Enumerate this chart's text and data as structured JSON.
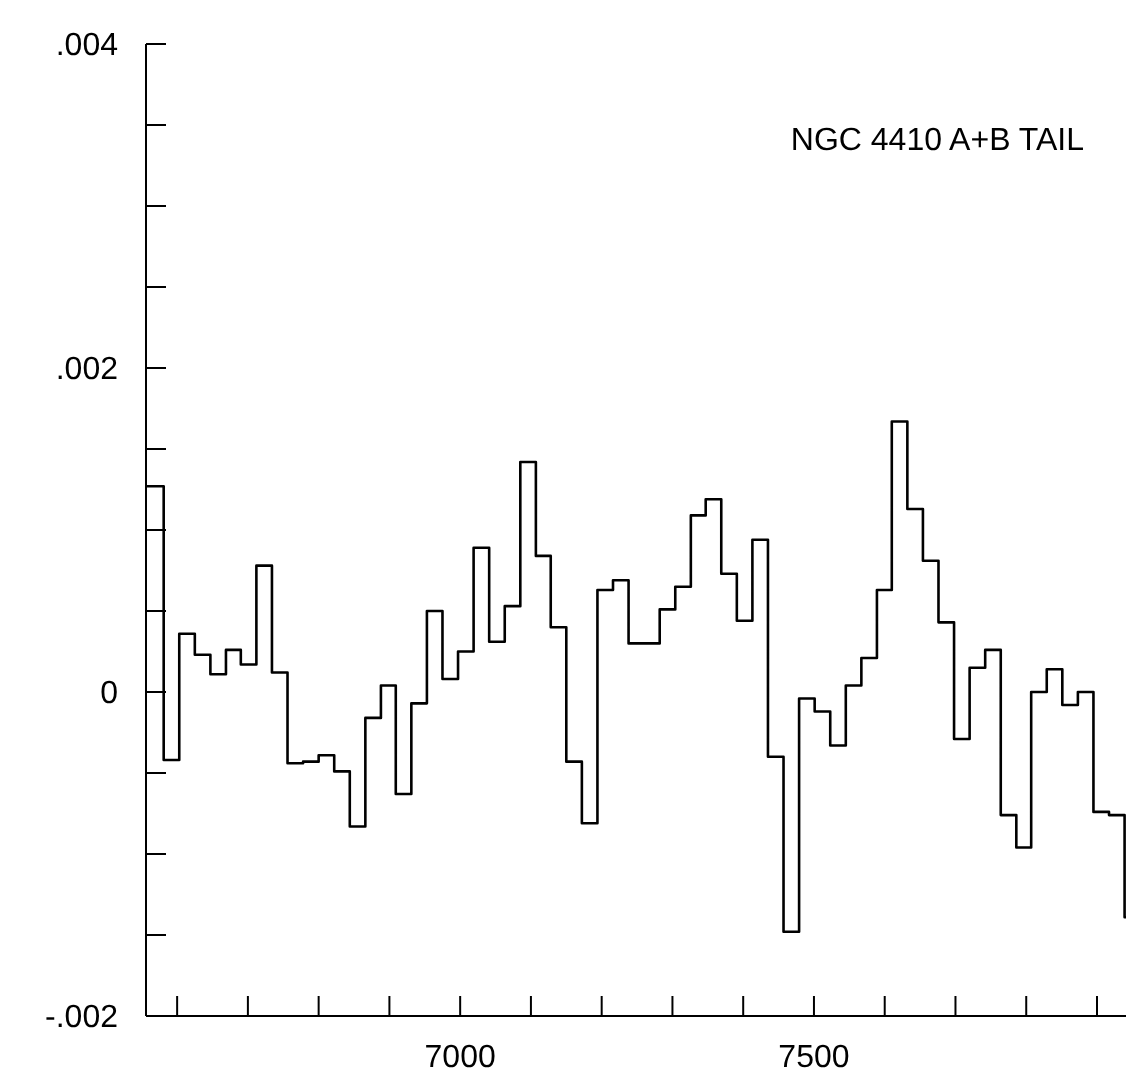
{
  "chart_data": {
    "type": "histogram",
    "annotations": [
      "NGC 4410 A+B TAIL"
    ],
    "bins": [
      6556,
      6581,
      6603,
      6625,
      6647,
      6669,
      6690,
      6712,
      6734,
      6756,
      6778,
      6800,
      6822,
      6844,
      6866,
      6888,
      6909,
      6931,
      6953,
      6975,
      6997,
      7019,
      7041,
      7063,
      7085,
      7107,
      7128,
      7150,
      7172,
      7194,
      7216,
      7238,
      7260,
      7282,
      7304,
      7326,
      7347,
      7369,
      7391,
      7413,
      7435,
      7457,
      7479,
      7501,
      7523,
      7545,
      7567,
      7589,
      7610,
      7632,
      7654,
      7676,
      7698,
      7720,
      7742,
      7764,
      7786,
      7807,
      7829,
      7851,
      7873,
      7895,
      7917,
      7939,
      7941
    ],
    "values": [
      0.00127,
      -0.00042,
      0.00036,
      0.00023,
      0.00011,
      0.00026,
      0.00017,
      0.00078,
      0.00012,
      -0.00044,
      -0.00043,
      -0.00039,
      -0.00049,
      -0.00083,
      -0.00016,
      4e-05,
      -0.00063,
      -7e-05,
      0.0005,
      8e-05,
      0.00025,
      0.00089,
      0.00031,
      0.00053,
      0.00142,
      0.00084,
      0.0004,
      -0.00043,
      -0.00081,
      0.00063,
      0.00069,
      0.0003,
      0.0003,
      0.00051,
      0.00065,
      0.00109,
      0.00119,
      0.00073,
      0.00044,
      0.00094,
      -0.0004,
      -0.00148,
      -4e-05,
      -0.00012,
      -0.00033,
      4e-05,
      0.00021,
      0.00063,
      0.00167,
      0.00113,
      0.00081,
      0.00043,
      -0.00029,
      0.00015,
      0.00026,
      -0.00076,
      -0.00096,
      0,
      0.00014,
      -8e-05,
      0,
      -0.00074,
      -0.00076,
      -0.00139
    ],
    "color": "#000000",
    "xlim": [
      6556,
      7941
    ],
    "ylim": [
      -0.002,
      0.004
    ],
    "xticks": [
      {
        "value": 6600,
        "label": null
      },
      {
        "value": 6700,
        "label": null
      },
      {
        "value": 6800,
        "label": null
      },
      {
        "value": 6900,
        "label": null
      },
      7000,
      {
        "value": 7100,
        "label": null
      },
      {
        "value": 7200,
        "label": null
      },
      {
        "value": 7300,
        "label": null
      },
      {
        "value": 7400,
        "label": null
      },
      7500,
      {
        "value": 7600,
        "label": null
      },
      {
        "value": 7700,
        "label": null
      },
      {
        "value": 7800,
        "label": null
      },
      {
        "value": 7900,
        "label": null
      }
    ],
    "yticks": [
      {
        "value": -0.002,
        "label": "-.002"
      },
      {
        "value": -0.0015,
        "label": null
      },
      {
        "value": -0.001,
        "label": null
      },
      {
        "value": -0.0005,
        "label": null
      },
      0,
      {
        "value": 0.0005,
        "label": null
      },
      {
        "value": 0.001,
        "label": null
      },
      {
        "value": 0.0015,
        "label": null
      },
      {
        "value": 0.002,
        "label": ".002"
      },
      {
        "value": 0.0025,
        "label": null
      },
      {
        "value": 0.003,
        "label": null
      },
      {
        "value": 0.0035,
        "label": null
      },
      {
        "value": 0.004,
        "label": ".004"
      }
    ],
    "grid": false
  }
}
